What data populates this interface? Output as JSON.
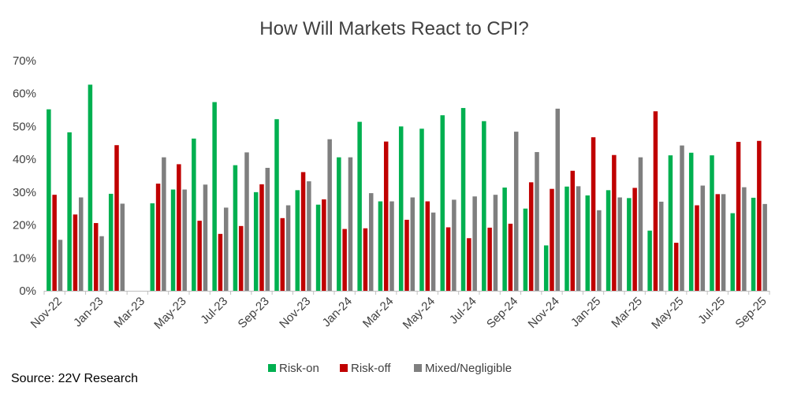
{
  "chart_data": {
    "type": "bar",
    "title": "How Will Markets React to CPI?",
    "xlabel": "",
    "ylabel": "",
    "ylim": [
      0,
      70
    ],
    "yticks": [
      "0%",
      "10%",
      "20%",
      "30%",
      "40%",
      "50%",
      "60%",
      "70%"
    ],
    "grid": false,
    "legend_position": "bottom",
    "categories": [
      "Nov-22",
      "Dec-22",
      "Jan-23",
      "Feb-23",
      "Mar-23",
      "Apr-23",
      "May-23",
      "Jun-23",
      "Jul-23",
      "Aug-23",
      "Sep-23",
      "Oct-23",
      "Nov-23",
      "Dec-23",
      "Jan-24",
      "Feb-24",
      "Mar-24",
      "Apr-24",
      "May-24",
      "Jun-24",
      "Jul-24",
      "Aug-24",
      "Sep-24",
      "Oct-24",
      "Nov-24",
      "Dec-24",
      "Jan-25",
      "Feb-25",
      "Mar-25",
      "Apr-25",
      "May-25",
      "Jun-25",
      "Jul-25",
      "Aug-25",
      "Sep-25"
    ],
    "x_tick_labels": [
      "Nov-22",
      "Jan-23",
      "Mar-23",
      "May-23",
      "Jul-23",
      "Sep-23",
      "Nov-23",
      "Jan-24",
      "Mar-24",
      "May-24",
      "Jul-24",
      "Sep-24",
      "Nov-24",
      "Jan-25",
      "Mar-25",
      "May-25",
      "Jul-25",
      "Sep-25"
    ],
    "series": [
      {
        "name": "Risk-on",
        "color": "#00B050",
        "values": [
          55.2,
          48.2,
          62.7,
          29.5,
          null,
          26.6,
          30.8,
          46.3,
          57.4,
          38.2,
          30.0,
          52.2,
          30.6,
          26.2,
          40.6,
          51.4,
          27.2,
          50.0,
          49.3,
          53.4,
          55.6,
          51.6,
          31.4,
          25.0,
          13.8,
          31.7,
          29.0,
          30.6,
          28.2,
          18.3,
          41.2,
          42.0,
          41.2,
          23.6,
          28.3
        ]
      },
      {
        "name": "Risk-off",
        "color": "#C00000",
        "values": [
          29.2,
          23.2,
          20.6,
          44.3,
          null,
          32.6,
          38.5,
          21.3,
          17.3,
          19.7,
          32.4,
          22.1,
          36.1,
          27.8,
          18.8,
          19.0,
          45.4,
          21.6,
          27.2,
          19.3,
          16.0,
          19.2,
          20.4,
          33.0,
          31.0,
          36.5,
          46.7,
          41.3,
          31.3,
          54.6,
          14.6,
          26.0,
          29.4,
          45.3,
          45.6
        ]
      },
      {
        "name": "Mixed/Negligible",
        "color": "#7F7F7F",
        "values": [
          15.5,
          28.4,
          16.6,
          26.5,
          null,
          40.6,
          30.8,
          32.3,
          25.3,
          42.1,
          37.4,
          26.0,
          33.3,
          46.1,
          40.6,
          29.7,
          27.2,
          28.4,
          23.8,
          27.7,
          28.7,
          29.2,
          48.4,
          42.2,
          55.4,
          31.8,
          24.5,
          28.4,
          40.6,
          27.1,
          44.2,
          32.0,
          29.4,
          31.5,
          26.4
        ]
      }
    ]
  },
  "source_text": "Source: 22V Research"
}
